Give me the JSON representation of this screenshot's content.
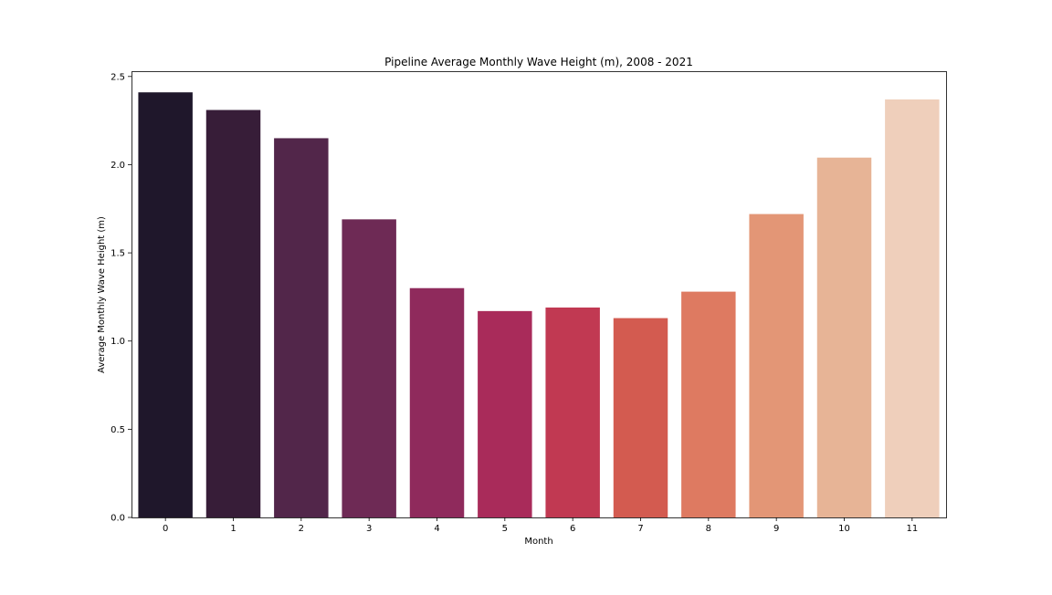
{
  "chart_data": {
    "type": "bar",
    "title": "Pipeline Average Monthly Wave Height (m), 2008 - 2021",
    "xlabel": "Month",
    "ylabel": "Average Monthly Wave Height (m)",
    "categories": [
      "0",
      "1",
      "2",
      "3",
      "4",
      "5",
      "6",
      "7",
      "8",
      "9",
      "10",
      "11"
    ],
    "values": [
      2.41,
      2.31,
      2.15,
      1.69,
      1.3,
      1.17,
      1.19,
      1.13,
      1.28,
      1.72,
      2.04,
      2.37
    ],
    "ylim": [
      0,
      2.53
    ],
    "yticks": [
      0.0,
      0.5,
      1.0,
      1.5,
      2.0,
      2.5
    ],
    "ytick_labels": [
      "0.0",
      "0.5",
      "1.0",
      "1.5",
      "2.0",
      "2.5"
    ],
    "grid": false,
    "legend": "none",
    "colors": [
      "#1f172b",
      "#371d38",
      "#52264a",
      "#6e2a55",
      "#8f2a5c",
      "#a92b5a",
      "#c13952",
      "#d35b50",
      "#de7a61",
      "#e39676",
      "#e7b496",
      "#efcfbb"
    ]
  }
}
